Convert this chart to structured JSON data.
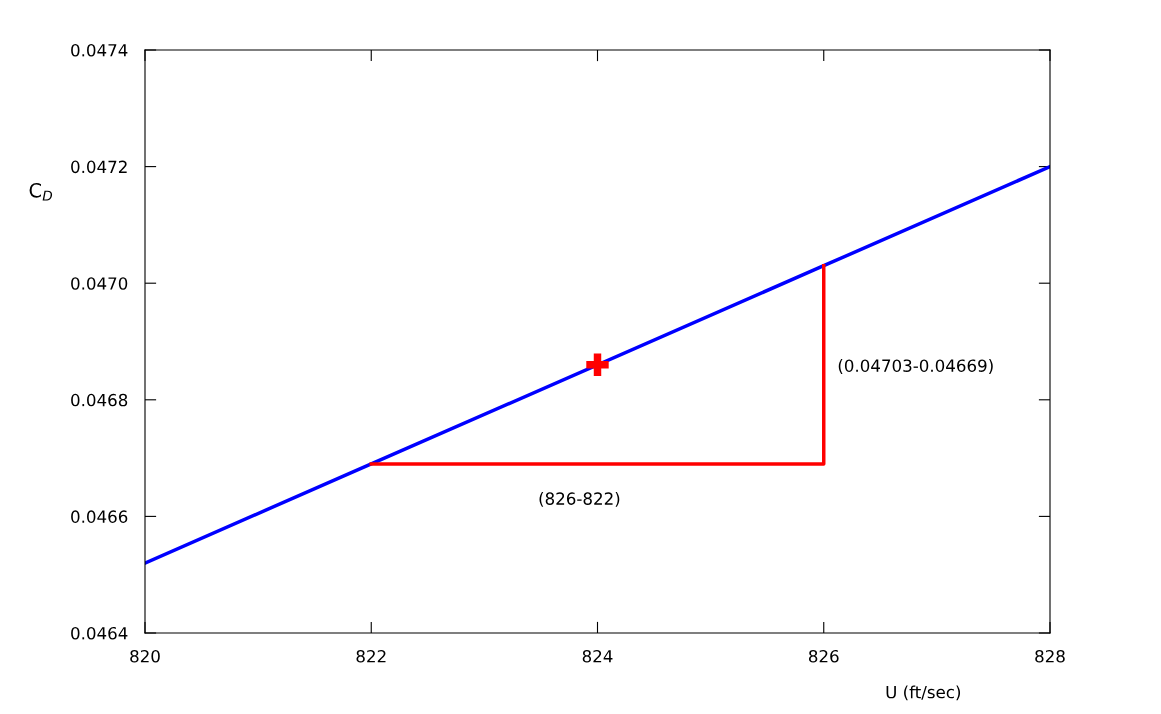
{
  "chart_data": {
    "type": "line",
    "xlabel": "U (ft/sec)",
    "ylabel": "C$_{D}$",
    "xlim": [
      820,
      828
    ],
    "xticks": [
      820,
      822,
      824,
      826,
      828
    ],
    "ylim": [
      0.0464,
      0.0474
    ],
    "yticks": [
      0.0464,
      0.0466,
      0.0468,
      {
        "value": 0.047,
        "label": "0.0470"
      },
      0.0472,
      0.0474
    ],
    "grid": false,
    "legend": false,
    "series": [
      {
        "color": "#0000ff",
        "x": [
          820,
          822,
          826,
          828
        ],
        "values": [
          0.04652,
          0.04669,
          0.04703,
          0.0472
        ]
      },
      {
        "color": "#ff0000",
        "x": [
          822,
          826,
          826
        ],
        "values": [
          0.04669,
          0.04669,
          0.04703
        ]
      },
      {
        "type": "scatter",
        "color": "#ff0000",
        "marker": "cross",
        "x": [
          824
        ],
        "values": [
          0.04686
        ]
      }
    ],
    "annotations": [
      "(826-822)",
      "(0.04703-0.04669)"
    ]
  }
}
